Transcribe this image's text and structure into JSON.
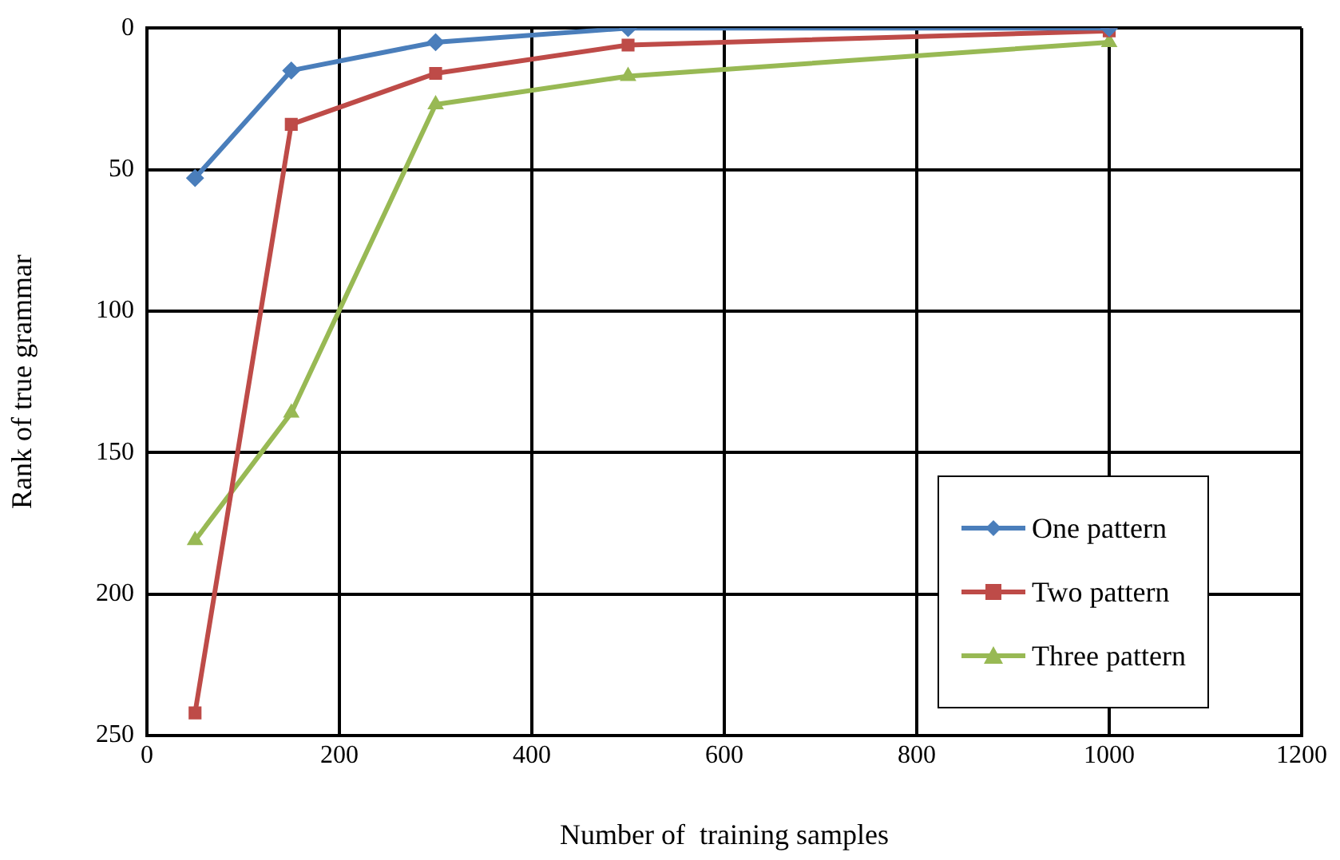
{
  "chart_data": {
    "type": "line",
    "xlabel": "Number of  training samples",
    "ylabel": "Rank of true grammar",
    "x": [
      50,
      150,
      300,
      500,
      1000
    ],
    "series": [
      {
        "name": "One pattern",
        "color": "#4a7ebb",
        "marker": "diamond",
        "values": [
          53,
          15,
          5,
          0,
          0
        ]
      },
      {
        "name": "Two pattern",
        "color": "#be4b48",
        "marker": "square",
        "values": [
          242,
          34,
          16,
          6,
          1
        ]
      },
      {
        "name": "Three pattern",
        "color": "#98b954",
        "marker": "triangle",
        "values": [
          181,
          136,
          27,
          17,
          5
        ]
      }
    ],
    "xlim": [
      0,
      1200
    ],
    "xticks": [
      0,
      200,
      400,
      600,
      800,
      1000,
      1200
    ],
    "ylim": [
      250,
      0
    ],
    "yticks": [
      0,
      50,
      100,
      150,
      200,
      250
    ],
    "grid": true,
    "legend": "bottom right",
    "line_style": "solid"
  }
}
